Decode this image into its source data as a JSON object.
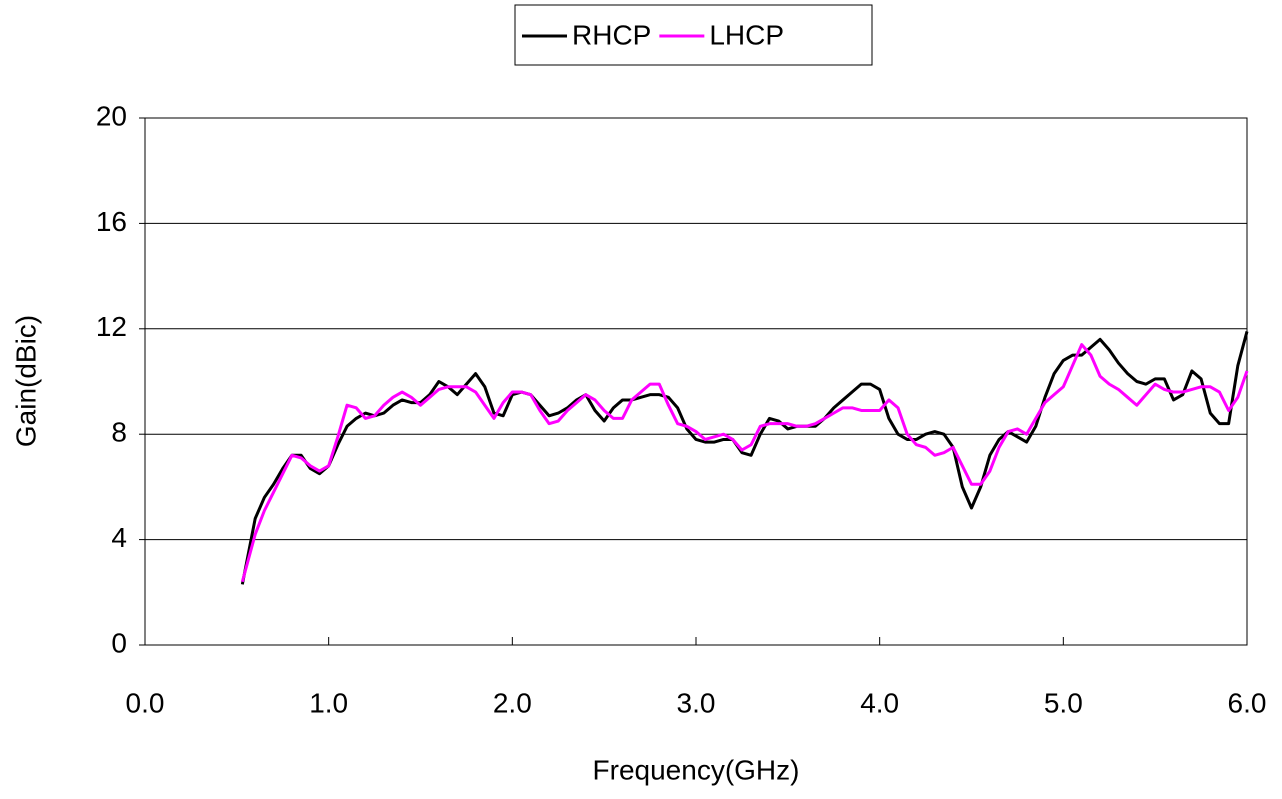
{
  "chart_data": {
    "type": "line",
    "x_label": "Frequency(GHz)",
    "y_label": "Gain(dBic)",
    "x": [
      0.53,
      0.6,
      0.65,
      0.7,
      0.75,
      0.8,
      0.85,
      0.9,
      0.95,
      1.0,
      1.05,
      1.1,
      1.15,
      1.2,
      1.25,
      1.3,
      1.35,
      1.4,
      1.45,
      1.5,
      1.55,
      1.6,
      1.65,
      1.7,
      1.75,
      1.8,
      1.85,
      1.9,
      1.95,
      2.0,
      2.05,
      2.1,
      2.15,
      2.2,
      2.25,
      2.3,
      2.35,
      2.4,
      2.45,
      2.5,
      2.55,
      2.6,
      2.65,
      2.7,
      2.75,
      2.8,
      2.85,
      2.9,
      2.95,
      3.0,
      3.05,
      3.1,
      3.15,
      3.2,
      3.25,
      3.3,
      3.35,
      3.4,
      3.45,
      3.5,
      3.55,
      3.6,
      3.65,
      3.7,
      3.75,
      3.8,
      3.85,
      3.9,
      3.95,
      4.0,
      4.05,
      4.1,
      4.15,
      4.2,
      4.25,
      4.3,
      4.35,
      4.4,
      4.45,
      4.5,
      4.55,
      4.6,
      4.65,
      4.7,
      4.75,
      4.8,
      4.85,
      4.9,
      4.95,
      5.0,
      5.05,
      5.1,
      5.15,
      5.2,
      5.25,
      5.3,
      5.35,
      5.4,
      5.45,
      5.5,
      5.55,
      5.6,
      5.65,
      5.7,
      5.75,
      5.8,
      5.85,
      5.9,
      5.95,
      6.0
    ],
    "series": [
      {
        "name": "RHCP",
        "color": "#000000",
        "values": [
          2.3,
          4.8,
          5.6,
          6.1,
          6.7,
          7.2,
          7.2,
          6.7,
          6.5,
          6.8,
          7.6,
          8.3,
          8.6,
          8.8,
          8.7,
          8.8,
          9.1,
          9.3,
          9.2,
          9.2,
          9.5,
          10.0,
          9.8,
          9.5,
          9.9,
          10.3,
          9.8,
          8.8,
          8.7,
          9.5,
          9.6,
          9.5,
          9.1,
          8.7,
          8.8,
          9.0,
          9.3,
          9.5,
          8.9,
          8.5,
          9.0,
          9.3,
          9.3,
          9.4,
          9.5,
          9.5,
          9.4,
          9.0,
          8.2,
          7.8,
          7.7,
          7.7,
          7.8,
          7.8,
          7.3,
          7.2,
          8.0,
          8.6,
          8.5,
          8.2,
          8.3,
          8.3,
          8.3,
          8.6,
          9.0,
          9.3,
          9.6,
          9.9,
          9.9,
          9.7,
          8.6,
          8.0,
          7.8,
          7.8,
          8.0,
          8.1,
          8.0,
          7.5,
          6.0,
          5.2,
          6.0,
          7.2,
          7.8,
          8.1,
          7.9,
          7.7,
          8.3,
          9.4,
          10.3,
          10.8,
          11.0,
          11.0,
          11.3,
          11.6,
          11.2,
          10.7,
          10.3,
          10.0,
          9.9,
          10.1,
          10.1,
          9.3,
          9.5,
          10.4,
          10.1,
          8.8,
          8.4,
          8.4,
          10.6,
          11.9
        ]
      },
      {
        "name": "LHCP",
        "color": "#ff00ff",
        "values": [
          2.4,
          4.2,
          5.1,
          5.8,
          6.5,
          7.2,
          7.1,
          6.8,
          6.6,
          6.8,
          7.9,
          9.1,
          9.0,
          8.6,
          8.7,
          9.1,
          9.4,
          9.6,
          9.4,
          9.1,
          9.4,
          9.7,
          9.8,
          9.8,
          9.8,
          9.6,
          9.1,
          8.6,
          9.2,
          9.6,
          9.6,
          9.5,
          8.9,
          8.4,
          8.5,
          8.9,
          9.2,
          9.5,
          9.3,
          8.9,
          8.6,
          8.6,
          9.3,
          9.6,
          9.9,
          9.9,
          9.1,
          8.4,
          8.3,
          8.1,
          7.8,
          7.9,
          8.0,
          7.8,
          7.4,
          7.6,
          8.3,
          8.4,
          8.4,
          8.4,
          8.3,
          8.3,
          8.4,
          8.6,
          8.8,
          9.0,
          9.0,
          8.9,
          8.9,
          8.9,
          9.3,
          9.0,
          8.0,
          7.6,
          7.5,
          7.2,
          7.3,
          7.5,
          6.8,
          6.1,
          6.1,
          6.6,
          7.5,
          8.1,
          8.2,
          8.0,
          8.6,
          9.2,
          9.5,
          9.8,
          10.6,
          11.4,
          11.0,
          10.2,
          9.9,
          9.7,
          9.4,
          9.1,
          9.5,
          9.9,
          9.7,
          9.6,
          9.6,
          9.7,
          9.8,
          9.8,
          9.6,
          8.9,
          9.4,
          10.4
        ]
      }
    ],
    "xlim": [
      0,
      6
    ],
    "xticks": [
      {
        "value": 0,
        "label": "0.0"
      },
      {
        "value": 1,
        "label": "1.0"
      },
      {
        "value": 2,
        "label": "2.0"
      },
      {
        "value": 3,
        "label": "3.0"
      },
      {
        "value": 4,
        "label": "4.0"
      },
      {
        "value": 5,
        "label": "5.0"
      },
      {
        "value": 6,
        "label": "6.0"
      }
    ],
    "ylim": [
      0,
      20
    ],
    "yticks": [
      0,
      4,
      8,
      12,
      16,
      20
    ],
    "grid": true,
    "legend": "top"
  }
}
